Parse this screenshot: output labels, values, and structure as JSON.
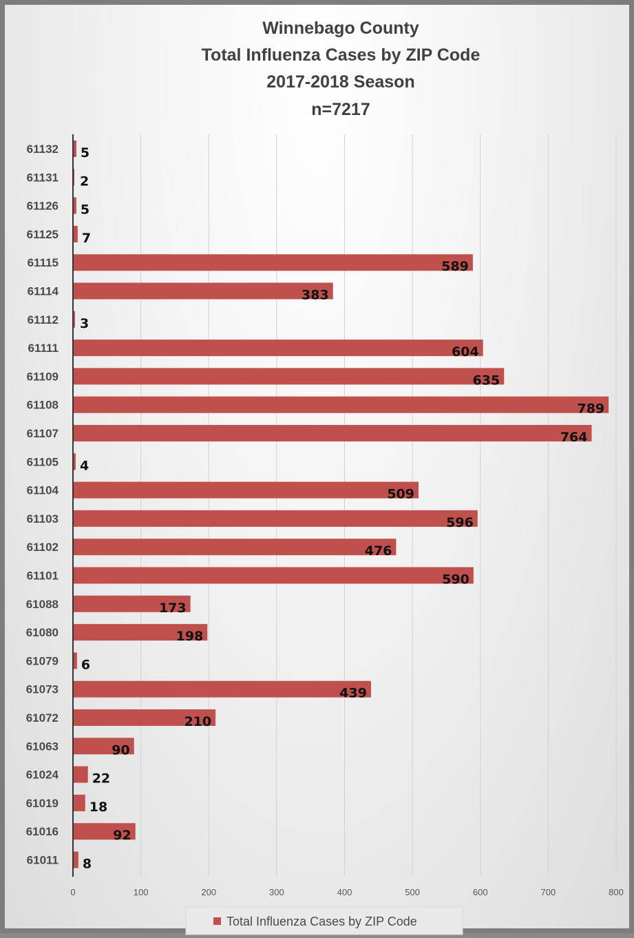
{
  "chart_data": {
    "type": "bar",
    "orientation": "horizontal",
    "title": [
      "Winnebago County",
      "Total Influenza Cases by ZIP Code",
      "2017-2018 Season",
      "n=7217"
    ],
    "categories": [
      "61132",
      "61131",
      "61126",
      "61125",
      "61115",
      "61114",
      "61112",
      "61111",
      "61109",
      "61108",
      "61107",
      "61105",
      "61104",
      "61103",
      "61102",
      "61101",
      "61088",
      "61080",
      "61079",
      "61073",
      "61072",
      "61063",
      "61024",
      "61019",
      "61016",
      "61011"
    ],
    "series": [
      {
        "name": "Total Influenza Cases by ZIP Code",
        "color": "#c0504d",
        "values": [
          5,
          2,
          5,
          7,
          589,
          383,
          3,
          604,
          635,
          789,
          764,
          4,
          509,
          596,
          476,
          590,
          173,
          198,
          6,
          439,
          210,
          90,
          22,
          18,
          92,
          8
        ]
      }
    ],
    "xlim": [
      0,
      800
    ],
    "xticks": [
      0,
      100,
      200,
      300,
      400,
      500,
      600,
      700,
      800
    ],
    "grid": true,
    "legend_position": "bottom"
  }
}
